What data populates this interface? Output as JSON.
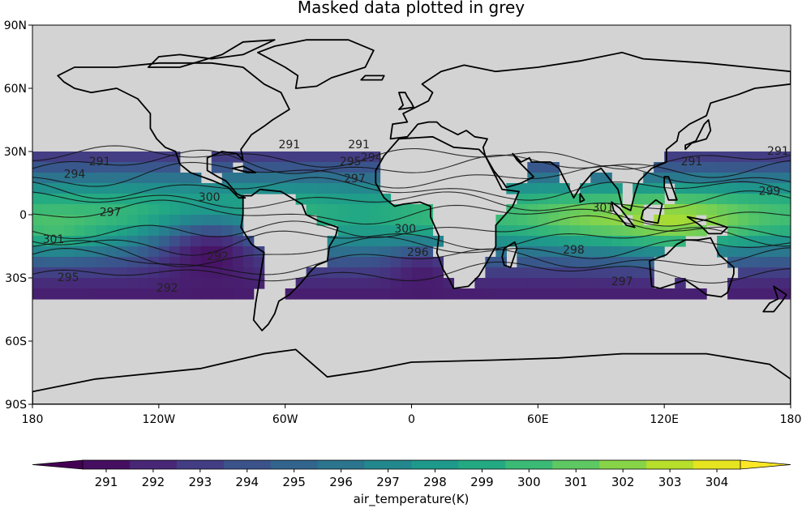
{
  "chart_data": {
    "type": "heatmap",
    "title": "Masked data plotted in grey",
    "projection": "PlateCarree world map",
    "mask_color": "#d3d3d3",
    "masked_regions": "land areas and latitudes poleward of about 35 degrees",
    "colormap": "viridis",
    "x_ticks": [
      "180",
      "120W",
      "60W",
      "0",
      "60E",
      "120E",
      "180"
    ],
    "x_tick_values": [
      -180,
      -120,
      -60,
      0,
      60,
      120,
      180
    ],
    "y_ticks": [
      "90N",
      "60N",
      "30N",
      "0",
      "30S",
      "60S",
      "90S"
    ],
    "y_tick_values": [
      90,
      60,
      30,
      0,
      -30,
      -60,
      -90
    ],
    "xlim": [
      -180,
      180
    ],
    "ylim": [
      -90,
      90
    ],
    "colorbar": {
      "label": "air_temperature(K)",
      "ticks": [
        "291",
        "292",
        "293",
        "294",
        "295",
        "296",
        "297",
        "298",
        "299",
        "300",
        "301",
        "302",
        "303",
        "304"
      ],
      "min": 290.5,
      "max": 304.5,
      "extend": "both",
      "colors": [
        "#440154",
        "#481a6c",
        "#472f7d",
        "#414487",
        "#39568c",
        "#31688e",
        "#2a788e",
        "#23888e",
        "#1f988b",
        "#22a884",
        "#35b779",
        "#54c568",
        "#7ad151",
        "#a5db36",
        "#d2e21b",
        "#fde725"
      ]
    },
    "contour_labels": [
      {
        "text": "291",
        "lon": -148,
        "lat": 25
      },
      {
        "text": "294",
        "lon": -160,
        "lat": 19
      },
      {
        "text": "297",
        "lon": -143,
        "lat": 1
      },
      {
        "text": "301",
        "lon": -170,
        "lat": -12
      },
      {
        "text": "295",
        "lon": -163,
        "lat": -30
      },
      {
        "text": "292",
        "lon": -116,
        "lat": -35
      },
      {
        "text": "292",
        "lon": -92,
        "lat": -20
      },
      {
        "text": "300",
        "lon": -96,
        "lat": 8
      },
      {
        "text": "297",
        "lon": -27,
        "lat": 17
      },
      {
        "text": "295",
        "lon": -29,
        "lat": 25
      },
      {
        "text": "294",
        "lon": -19,
        "lat": 27
      },
      {
        "text": "291",
        "lon": -25,
        "lat": 33
      },
      {
        "text": "291",
        "lon": -58,
        "lat": 33
      },
      {
        "text": "300",
        "lon": -3,
        "lat": -7
      },
      {
        "text": "296",
        "lon": 3,
        "lat": -18
      },
      {
        "text": "298",
        "lon": 77,
        "lat": -17
      },
      {
        "text": "301",
        "lon": 91,
        "lat": 3
      },
      {
        "text": "297",
        "lon": 100,
        "lat": -32
      },
      {
        "text": "299",
        "lon": 170,
        "lat": 11
      },
      {
        "text": "291",
        "lon": 174,
        "lat": 30
      },
      {
        "text": "291",
        "lon": 133,
        "lat": 25
      }
    ]
  }
}
